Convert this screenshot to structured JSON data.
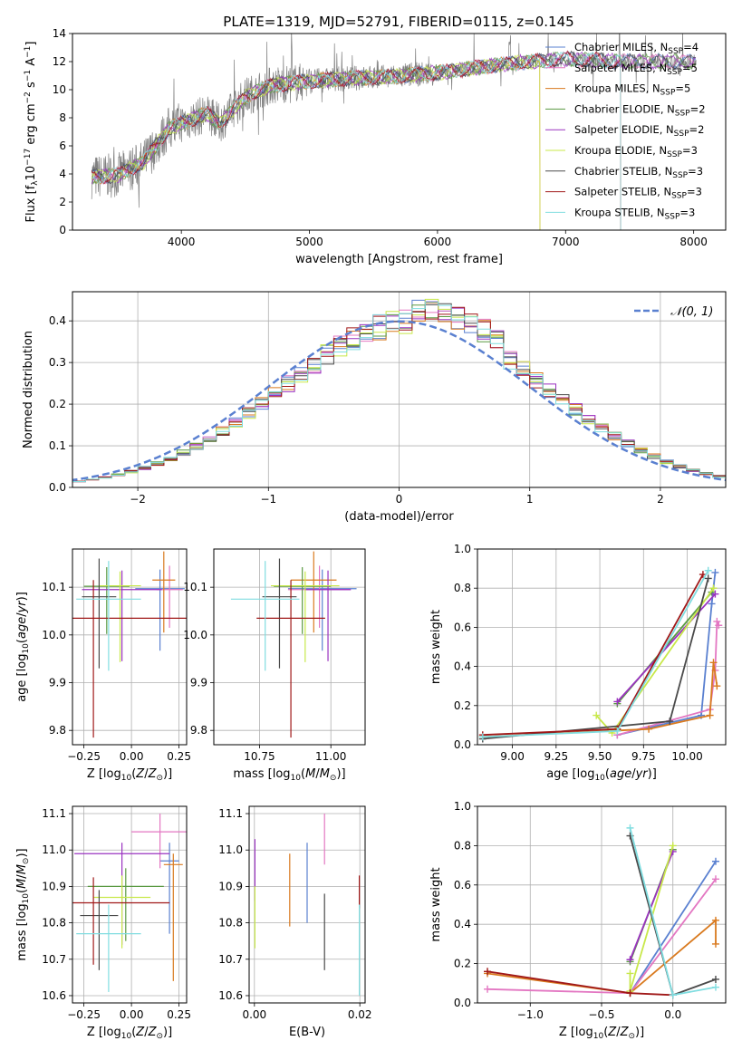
{
  "figure": {
    "title": "PLATE=1319, MJD=52791, FIBERID=0115, z=0.145"
  },
  "series": [
    {
      "name": "Chabrier MILES, N",
      "sub": "SSP",
      "suffix": "=4",
      "color": "#5a80d0"
    },
    {
      "name": "Salpeter MILES, N",
      "sub": "SSP",
      "suffix": "=5",
      "color": "#e377c2"
    },
    {
      "name": "Kroupa MILES, N",
      "sub": "SSP",
      "suffix": "=5",
      "color": "#d97a1f"
    },
    {
      "name": "Chabrier ELODIE, N",
      "sub": "SSP",
      "suffix": "=2",
      "color": "#5a9a42"
    },
    {
      "name": "Salpeter ELODIE, N",
      "sub": "SSP",
      "suffix": "=2",
      "color": "#9a32c0"
    },
    {
      "name": "Kroupa ELODIE, N",
      "sub": "SSP",
      "suffix": "=3",
      "color": "#c8e84a"
    },
    {
      "name": "Chabrier STELIB, N",
      "sub": "SSP",
      "suffix": "=3",
      "color": "#4a4a4a"
    },
    {
      "name": "Salpeter STELIB, N",
      "sub": "SSP",
      "suffix": "=3",
      "color": "#a01818"
    },
    {
      "name": "Kroupa STELIB, N",
      "sub": "SSP",
      "suffix": "=3",
      "color": "#80dde0"
    }
  ],
  "chart_data": [
    {
      "id": "spectrum",
      "type": "line",
      "xlabel": "wavelength [Angstrom, rest frame]",
      "ylabel": "Flux [f_λ10^-17 erg cm^-2 s^-1 A^-1]",
      "xlim": [
        3150,
        8250
      ],
      "ylim": [
        0,
        14
      ],
      "xticks": [
        4000,
        5000,
        6000,
        7000,
        8000
      ],
      "yticks": [
        0,
        2,
        4,
        6,
        8,
        10,
        12,
        14
      ],
      "grid": false,
      "legend": "right",
      "data_color": "#808080",
      "trend": {
        "x": [
          3300,
          3500,
          3700,
          3900,
          4000,
          4200,
          4300,
          4500,
          4700,
          5000,
          5300,
          5600,
          6000,
          6500,
          7000,
          7500,
          8000
        ],
        "y": [
          3.8,
          3.9,
          4.8,
          7.2,
          7.6,
          8.3,
          7.6,
          9.5,
          10.3,
          10.6,
          10.8,
          10.9,
          11.2,
          11.8,
          12.2,
          12.0,
          12.0
        ]
      },
      "model_cutoffs": [
        {
          "series": 2,
          "x": 6800
        },
        {
          "series": 5,
          "x": 6800
        },
        {
          "series": 7,
          "x": 7430
        },
        {
          "series": 8,
          "x": 7430
        }
      ]
    },
    {
      "id": "residuals",
      "type": "histogram",
      "xlabel": "(data-model)/error",
      "ylabel": "Normed distribution",
      "xlim": [
        -2.5,
        2.5
      ],
      "ylim": [
        0,
        0.47
      ],
      "xticks": [
        -2,
        -1,
        0,
        1,
        2
      ],
      "yticks": [
        0.0,
        0.1,
        0.2,
        0.3,
        0.4
      ],
      "grid": true,
      "bin_width": 0.1,
      "legend": {
        "label": "N(0,1)",
        "color": "#5a80d0",
        "placement": "top-right"
      }
    },
    {
      "id": "age_vs_Z",
      "type": "errorbar",
      "xlabel": "Z [log10(Z/Z☉)]",
      "ylabel": "age [log10(age/yr)]",
      "xlim": [
        -0.31,
        0.29
      ],
      "ylim": [
        9.77,
        10.18
      ],
      "xticks": [
        -0.25,
        0.0,
        0.25
      ],
      "yticks": [
        9.8,
        9.9,
        10.0,
        10.1
      ],
      "grid": true,
      "points": [
        {
          "s": 0,
          "x": 0.15,
          "y": 10.097,
          "xerr": 0.13,
          "yerr": [
            0.13,
            0.04
          ]
        },
        {
          "s": 1,
          "x": 0.2,
          "y": 10.095,
          "xerr": 0.07,
          "yerr": [
            0.08,
            0.05
          ]
        },
        {
          "s": 2,
          "x": 0.17,
          "y": 10.115,
          "xerr": 0.06,
          "yerr": [
            0.11,
            0.06
          ]
        },
        {
          "s": 3,
          "x": -0.13,
          "y": 10.102,
          "xerr": 0.12,
          "yerr": [
            0.1,
            0.04
          ]
        },
        {
          "s": 4,
          "x": -0.05,
          "y": 10.095,
          "xerr": 0.21,
          "yerr": [
            0.15,
            0.04
          ]
        },
        {
          "s": 5,
          "x": -0.06,
          "y": 10.103,
          "xerr": 0.11,
          "yerr": [
            0.16,
            0.03
          ]
        },
        {
          "s": 6,
          "x": -0.17,
          "y": 10.08,
          "xerr": 0.09,
          "yerr": [
            0.15,
            0.08
          ]
        },
        {
          "s": 7,
          "x": -0.2,
          "y": 10.035,
          "xerr": 0.5,
          "yerr": [
            0.25,
            0.08
          ]
        },
        {
          "s": 8,
          "x": -0.12,
          "y": 10.075,
          "xerr": 0.17,
          "yerr": [
            0.15,
            0.08
          ]
        }
      ]
    },
    {
      "id": "age_vs_mass",
      "type": "errorbar",
      "xlabel": "mass [log10(M/M☉)]",
      "ylabel": "",
      "xlim": [
        10.59,
        11.12
      ],
      "ylim": [
        9.77,
        10.18
      ],
      "xticks": [
        10.75,
        11.0
      ],
      "yticks": [
        9.8,
        9.9,
        10.0,
        10.1
      ],
      "grid": true,
      "points": [
        {
          "s": 0,
          "x": 10.97,
          "y": 10.097,
          "xerr": 0.12,
          "yerr": [
            0.13,
            0.04
          ]
        },
        {
          "s": 1,
          "x": 10.96,
          "y": 10.095,
          "xerr": 0.11,
          "yerr": [
            0.08,
            0.05
          ]
        },
        {
          "s": 2,
          "x": 10.94,
          "y": 10.115,
          "xerr": 0.08,
          "yerr": [
            0.11,
            0.06
          ]
        },
        {
          "s": 3,
          "x": 10.9,
          "y": 10.102,
          "xerr": 0.1,
          "yerr": [
            0.1,
            0.04
          ]
        },
        {
          "s": 4,
          "x": 10.99,
          "y": 10.095,
          "xerr": 0.08,
          "yerr": [
            0.15,
            0.04
          ]
        },
        {
          "s": 5,
          "x": 10.91,
          "y": 10.103,
          "xerr": 0.12,
          "yerr": [
            0.16,
            0.03
          ]
        },
        {
          "s": 6,
          "x": 10.82,
          "y": 10.08,
          "xerr": 0.06,
          "yerr": [
            0.15,
            0.08
          ]
        },
        {
          "s": 7,
          "x": 10.86,
          "y": 10.035,
          "xerr": 0.12,
          "yerr": [
            0.25,
            0.08
          ]
        },
        {
          "s": 8,
          "x": 10.77,
          "y": 10.075,
          "xerr": 0.12,
          "yerr": [
            0.15,
            0.08
          ]
        }
      ]
    },
    {
      "id": "weight_vs_age",
      "type": "line",
      "xlabel": "age [log10(age/yr)]",
      "ylabel": "mass weight",
      "xlim": [
        8.8,
        10.22
      ],
      "ylim": [
        0,
        1
      ],
      "xticks": [
        9.0,
        9.25,
        9.5,
        9.75,
        10.0
      ],
      "yticks": [
        0.0,
        0.2,
        0.4,
        0.6,
        0.8,
        1.0
      ],
      "grid": true,
      "lines": [
        {
          "s": 0,
          "x": [
            9.6,
            10.08,
            10.14,
            10.16
          ],
          "y": [
            0.05,
            0.15,
            0.72,
            0.88
          ]
        },
        {
          "s": 1,
          "x": [
            9.6,
            10.13,
            10.16,
            10.17,
            10.18
          ],
          "y": [
            0.05,
            0.18,
            0.38,
            0.63,
            0.61
          ]
        },
        {
          "s": 2,
          "x": [
            8.83,
            9.78,
            10.13,
            10.15,
            10.17
          ],
          "y": [
            0.04,
            0.08,
            0.15,
            0.42,
            0.3
          ]
        },
        {
          "s": 3,
          "x": [
            9.6,
            10.14
          ],
          "y": [
            0.21,
            0.78
          ]
        },
        {
          "s": 4,
          "x": [
            9.6,
            10.16
          ],
          "y": [
            0.22,
            0.77
          ]
        },
        {
          "s": 5,
          "x": [
            9.48,
            9.57,
            10.15
          ],
          "y": [
            0.15,
            0.06,
            0.8
          ]
        },
        {
          "s": 6,
          "x": [
            8.83,
            9.9,
            10.12
          ],
          "y": [
            0.03,
            0.12,
            0.85
          ]
        },
        {
          "s": 7,
          "x": [
            8.83,
            9.6,
            10.09
          ],
          "y": [
            0.05,
            0.08,
            0.87
          ]
        },
        {
          "s": 8,
          "x": [
            8.83,
            9.6,
            10.12
          ],
          "y": [
            0.04,
            0.07,
            0.89
          ]
        }
      ]
    },
    {
      "id": "mass_vs_Z",
      "type": "errorbar",
      "xlabel": "Z [log10(Z/Z☉)]",
      "ylabel": "mass [log10(M/M☉)]",
      "xlim": [
        -0.31,
        0.29
      ],
      "ylim": [
        10.58,
        11.12
      ],
      "xticks": [
        -0.25,
        0.0,
        0.25
      ],
      "yticks": [
        10.6,
        10.7,
        10.8,
        10.9,
        11.0,
        11.1
      ],
      "grid": true,
      "points": [
        {
          "s": 0,
          "x": 0.2,
          "y": 10.97,
          "xerr": 0.05,
          "yerr": [
            0.2,
            0.05
          ]
        },
        {
          "s": 1,
          "x": 0.15,
          "y": 11.05,
          "xerr": 0.15,
          "yerr": [
            0.1,
            0.05
          ]
        },
        {
          "s": 2,
          "x": 0.22,
          "y": 10.96,
          "xerr": 0.05,
          "yerr": [
            0.32,
            0.03
          ]
        },
        {
          "s": 3,
          "x": -0.03,
          "y": 10.9,
          "xerr": 0.2,
          "yerr": [
            0.15,
            0.05
          ]
        },
        {
          "s": 4,
          "x": -0.05,
          "y": 10.99,
          "xerr": 0.25,
          "yerr": [
            0.25,
            0.03
          ]
        },
        {
          "s": 5,
          "x": -0.05,
          "y": 10.87,
          "xerr": 0.15,
          "yerr": [
            0.14,
            0.06
          ]
        },
        {
          "s": 6,
          "x": -0.17,
          "y": 10.82,
          "xerr": 0.1,
          "yerr": [
            0.15,
            0.07
          ]
        },
        {
          "s": 7,
          "x": -0.2,
          "y": 10.855,
          "xerr": 0.4,
          "yerr": [
            0.17,
            0.07
          ]
        },
        {
          "s": 8,
          "x": -0.12,
          "y": 10.77,
          "xerr": 0.17,
          "yerr": [
            0.16,
            0.08
          ]
        }
      ]
    },
    {
      "id": "mass_vs_EBV",
      "type": "errorbar",
      "xlabel": "E(B-V)",
      "ylabel": "",
      "xlim": [
        -0.001,
        0.021
      ],
      "ylim": [
        10.58,
        11.12
      ],
      "xticks": [
        0.0,
        0.02
      ],
      "yticks": [
        10.6,
        10.7,
        10.8,
        10.9,
        11.0,
        11.1
      ],
      "grid": true,
      "points": [
        {
          "s": 0,
          "x": 0.01,
          "y": 10.9,
          "xerr": 0,
          "yerr": [
            0.1,
            0.12
          ]
        },
        {
          "s": 1,
          "x": 0.0133,
          "y": 11.0,
          "xerr": 0,
          "yerr": [
            0.04,
            0.1
          ]
        },
        {
          "s": 2,
          "x": 0.0067,
          "y": 10.89,
          "xerr": 0,
          "yerr": [
            0.1,
            0.1
          ]
        },
        {
          "s": 4,
          "x": 0.0001,
          "y": 10.93,
          "xerr": 0,
          "yerr": [
            0.07,
            0.1
          ]
        },
        {
          "s": 5,
          "x": 0.0001,
          "y": 10.83,
          "xerr": 0,
          "yerr": [
            0.1,
            0.07
          ]
        },
        {
          "s": 6,
          "x": 0.0133,
          "y": 10.78,
          "xerr": 0,
          "yerr": [
            0.11,
            0.1
          ]
        },
        {
          "s": 7,
          "x": 0.0199,
          "y": 10.89,
          "xerr": 0,
          "yerr": [
            0.05,
            0.04
          ]
        },
        {
          "s": 8,
          "x": 0.0199,
          "y": 10.71,
          "xerr": 0,
          "yerr": [
            0.11,
            0.14
          ]
        }
      ]
    },
    {
      "id": "weight_vs_Z",
      "type": "line",
      "xlabel": "Z [log10(Z/Z☉)]",
      "ylabel": "mass weight",
      "xlim": [
        -1.37,
        0.37
      ],
      "ylim": [
        0,
        1
      ],
      "xticks": [
        -1.0,
        -0.5,
        0.0
      ],
      "yticks": [
        0.0,
        0.2,
        0.4,
        0.6,
        0.8,
        1.0
      ],
      "grid": true,
      "lines": [
        {
          "s": 0,
          "x": [
            -0.3,
            0.3
          ],
          "y": [
            0.05,
            0.72
          ]
        },
        {
          "s": 1,
          "x": [
            -1.3,
            -0.3,
            0.3
          ],
          "y": [
            0.07,
            0.05,
            0.63
          ]
        },
        {
          "s": 2,
          "x": [
            -1.3,
            -0.3,
            0.3,
            0.3
          ],
          "y": [
            0.15,
            0.05,
            0.42,
            0.3
          ]
        },
        {
          "s": 3,
          "x": [
            -0.3,
            0.0
          ],
          "y": [
            0.21,
            0.78
          ]
        },
        {
          "s": 4,
          "x": [
            -0.3,
            0.0
          ],
          "y": [
            0.22,
            0.77
          ]
        },
        {
          "s": 5,
          "x": [
            -0.3,
            -0.3,
            0.0
          ],
          "y": [
            0.15,
            0.06,
            0.8
          ]
        },
        {
          "s": 6,
          "x": [
            -0.3,
            0.0,
            0.3
          ],
          "y": [
            0.85,
            0.04,
            0.12
          ]
        },
        {
          "s": 7,
          "x": [
            -1.3,
            -0.3,
            0.0
          ],
          "y": [
            0.16,
            0.05,
            0.04
          ]
        },
        {
          "s": 8,
          "x": [
            -0.3,
            0.0,
            0.3
          ],
          "y": [
            0.89,
            0.04,
            0.08
          ]
        }
      ]
    }
  ]
}
